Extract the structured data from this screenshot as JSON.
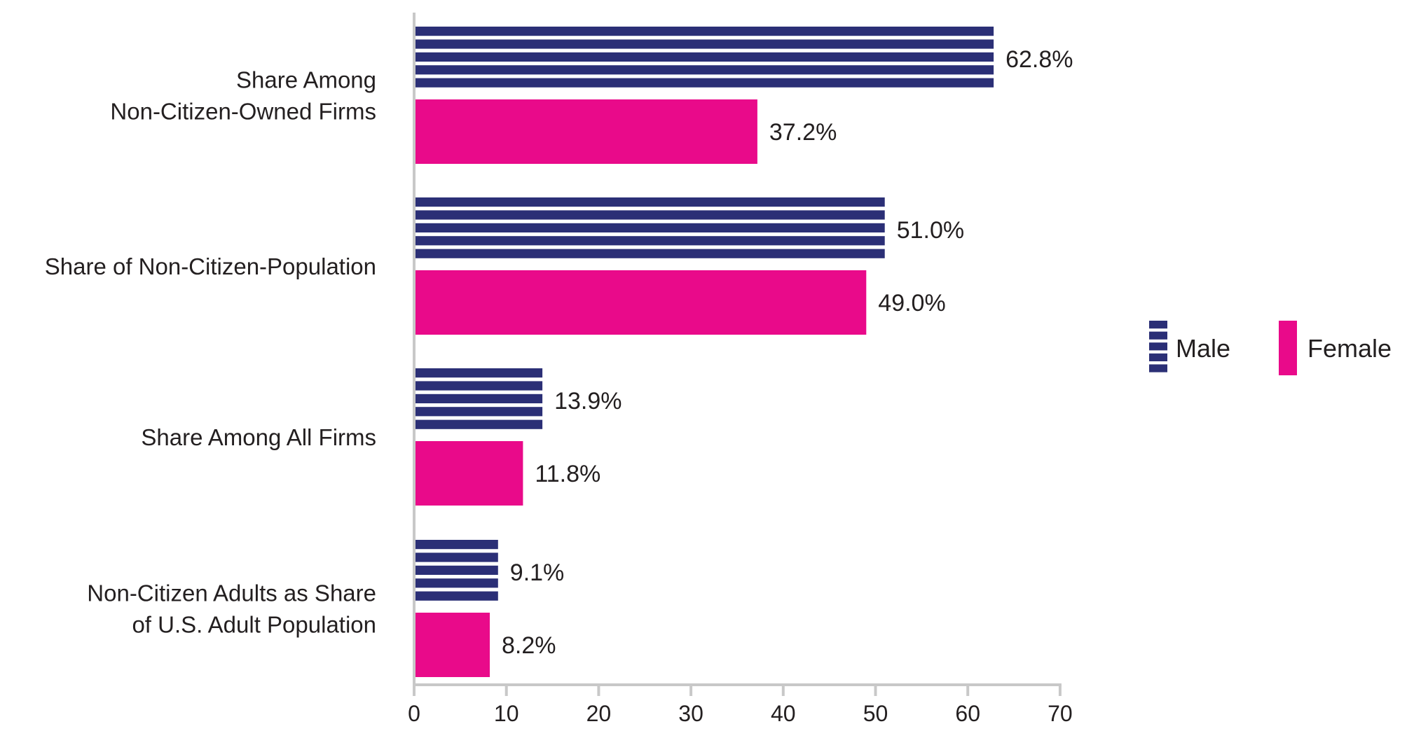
{
  "chart_data": {
    "type": "bar",
    "orientation": "horizontal",
    "title": "",
    "xlabel": "",
    "ylabel": "",
    "xlim": [
      0,
      70
    ],
    "x_ticks": [
      "0",
      "10",
      "20",
      "30",
      "40",
      "50",
      "60",
      "70"
    ],
    "grid": false,
    "legend_position": "right",
    "categories": [
      [
        "Share Among",
        "Non-Citizen-Owned Firms"
      ],
      [
        "Share of Non-Citizen-Population"
      ],
      [
        "Share Among All Firms"
      ],
      [
        "Non-Citizen Adults as Share",
        "of U.S. Adult Population"
      ]
    ],
    "series": [
      {
        "name": "Male",
        "color": "#2b2f76",
        "pattern": "horizontal-stripes",
        "values": [
          62.8,
          51.0,
          13.9,
          9.1
        ],
        "labels": [
          "62.8%",
          "51.0%",
          "13.9%",
          "9.1%"
        ]
      },
      {
        "name": "Female",
        "color": "#e90a8a",
        "pattern": "solid",
        "values": [
          37.2,
          49.0,
          11.8,
          8.2
        ],
        "labels": [
          "37.2%",
          "49.0%",
          "11.8%",
          "8.2%"
        ]
      }
    ],
    "axis_color": "#c8c8c8"
  }
}
